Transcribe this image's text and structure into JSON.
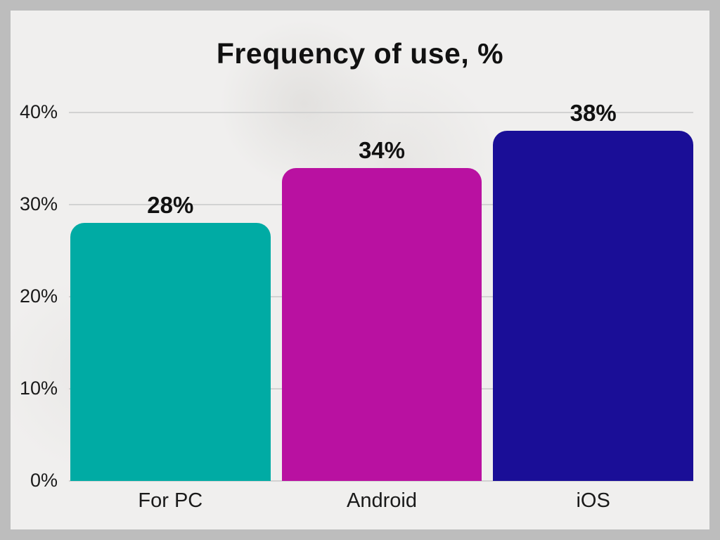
{
  "frame": {
    "border_color": "#bdbdbd",
    "background_color": "#f0efee"
  },
  "chart_data": {
    "type": "bar",
    "title": "Frequency of use, %",
    "categories": [
      "For PC",
      "Android",
      "iOS"
    ],
    "values": [
      28,
      34,
      38
    ],
    "value_labels": [
      "28%",
      "34%",
      "38%"
    ],
    "bar_colors": [
      "#00aba4",
      "#b911a1",
      "#1a0e97"
    ],
    "xlabel": "",
    "ylabel": "",
    "ylim": [
      0,
      40
    ],
    "yticks": [
      0,
      10,
      20,
      30,
      40
    ],
    "ytick_labels": [
      "0%",
      "10%",
      "20%",
      "30%",
      "40%"
    ],
    "grid": true,
    "gridline_color": "#d2d2d2",
    "text_color": "#111111",
    "legend": false
  }
}
